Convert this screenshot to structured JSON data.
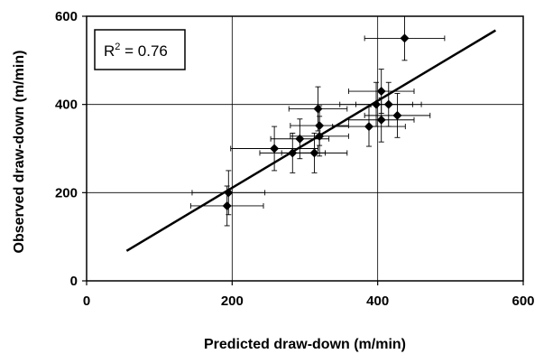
{
  "chart_data": {
    "type": "scatter",
    "xlabel": "Predicted draw-down (m/min)",
    "ylabel": "Observed draw-down (m/min)",
    "xlim": [
      0,
      600
    ],
    "ylim": [
      0,
      600
    ],
    "x_ticks": [
      0,
      200,
      400,
      600
    ],
    "y_ticks": [
      0,
      200,
      400,
      600
    ],
    "grid": true,
    "annotation": {
      "r2_base": "R",
      "r2_exp": "2",
      "r2_rest": " = 0.76"
    },
    "points": [
      {
        "x": 193,
        "y": 170,
        "xerr": 50,
        "yerr": 45
      },
      {
        "x": 195,
        "y": 200,
        "xerr": 50,
        "yerr": 50
      },
      {
        "x": 258,
        "y": 300,
        "xerr": 60,
        "yerr": 50
      },
      {
        "x": 283,
        "y": 290,
        "xerr": 45,
        "yerr": 45
      },
      {
        "x": 293,
        "y": 322,
        "xerr": 40,
        "yerr": 45
      },
      {
        "x": 313,
        "y": 290,
        "xerr": 45,
        "yerr": 45
      },
      {
        "x": 318,
        "y": 390,
        "xerr": 40,
        "yerr": 50
      },
      {
        "x": 320,
        "y": 352,
        "xerr": 40,
        "yerr": 45
      },
      {
        "x": 320,
        "y": 328,
        "xerr": 40,
        "yerr": 45
      },
      {
        "x": 388,
        "y": 350,
        "xerr": 50,
        "yerr": 45
      },
      {
        "x": 398,
        "y": 400,
        "xerr": 50,
        "yerr": 50
      },
      {
        "x": 405,
        "y": 430,
        "xerr": 45,
        "yerr": 50
      },
      {
        "x": 405,
        "y": 365,
        "xerr": 45,
        "yerr": 50
      },
      {
        "x": 415,
        "y": 400,
        "xerr": 45,
        "yerr": 50
      },
      {
        "x": 427,
        "y": 375,
        "xerr": 45,
        "yerr": 50
      },
      {
        "x": 437,
        "y": 550,
        "xerr": 55,
        "yerr": 50
      }
    ],
    "fit_line": {
      "x1": 55,
      "y1": 68,
      "x2": 562,
      "y2": 568
    }
  }
}
